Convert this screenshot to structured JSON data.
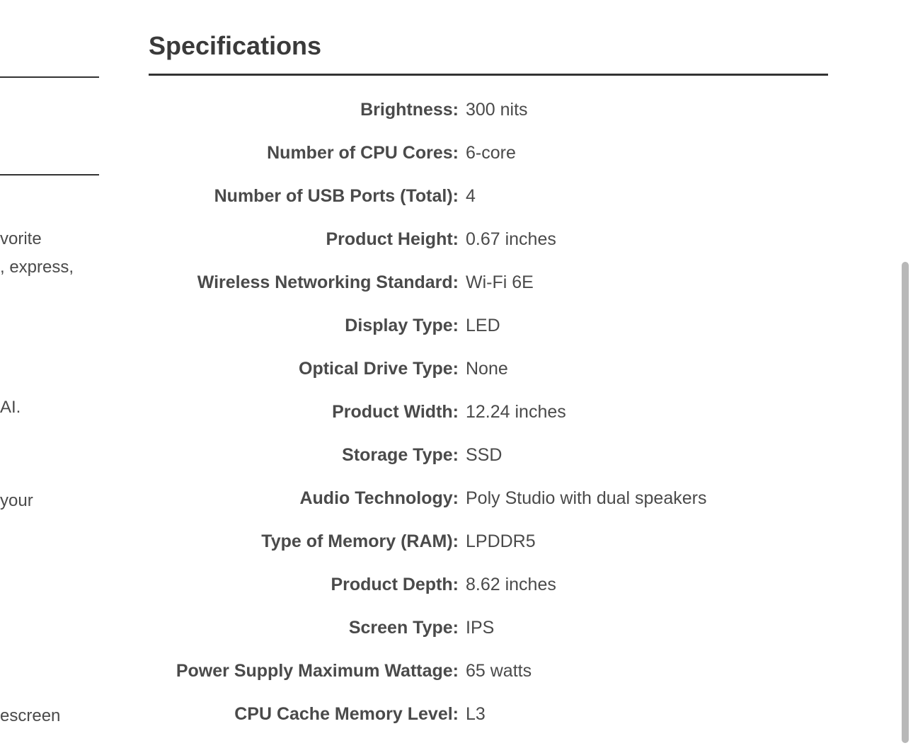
{
  "colors": {
    "text": "#4a4a4a",
    "heading": "#3a3a3a",
    "rule": "#333333",
    "scrollbar": "#b8b8b8",
    "background": "#ffffff"
  },
  "left_fragments": {
    "frag1": "vorite",
    "frag2": ", express,",
    "frag3": "AI.",
    "frag4": "your",
    "frag5": "escreen"
  },
  "section_title": "Specifications",
  "specs": [
    {
      "label": "Brightness:",
      "value": "300 nits"
    },
    {
      "label": "Number of CPU Cores:",
      "value": "6-core"
    },
    {
      "label": "Number of USB Ports (Total):",
      "value": "4"
    },
    {
      "label": "Product Height:",
      "value": "0.67 inches"
    },
    {
      "label": "Wireless Networking Standard:",
      "value": "Wi-Fi 6E"
    },
    {
      "label": "Display Type:",
      "value": "LED"
    },
    {
      "label": "Optical Drive Type:",
      "value": "None"
    },
    {
      "label": "Product Width:",
      "value": "12.24 inches"
    },
    {
      "label": "Storage Type:",
      "value": "SSD"
    },
    {
      "label": "Audio Technology:",
      "value": "Poly Studio with dual speakers"
    },
    {
      "label": "Type of Memory (RAM):",
      "value": "LPDDR5"
    },
    {
      "label": "Product Depth:",
      "value": "8.62 inches"
    },
    {
      "label": "Screen Type:",
      "value": "IPS"
    },
    {
      "label": "Power Supply Maximum Wattage:",
      "value": "65 watts"
    },
    {
      "label": "CPU Cache Memory Level:",
      "value": "L3"
    }
  ]
}
